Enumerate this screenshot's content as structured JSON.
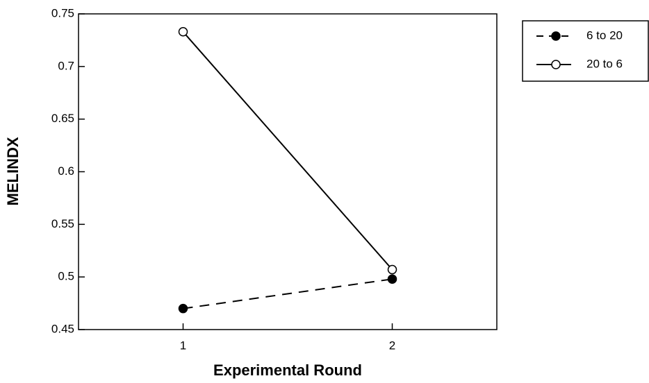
{
  "chart_data": {
    "type": "line",
    "x_label": "Experimental Round",
    "y_label": "MELINDX",
    "x": [
      1,
      2
    ],
    "xlim": [
      0.5,
      2.5
    ],
    "xticks": [
      1,
      2
    ],
    "ylim": [
      0.45,
      0.75
    ],
    "yticks": [
      0.45,
      0.5,
      0.55,
      0.6,
      0.65,
      0.7,
      0.75
    ],
    "legend": "outside-top-right",
    "series": [
      {
        "name": "6 to 20",
        "color": "#000000",
        "line_style": "dashed",
        "marker": "filled",
        "values": [
          0.47,
          0.498
        ]
      },
      {
        "name": "20 to 6",
        "color": "#000000",
        "line_style": "solid",
        "marker": "open",
        "values": [
          0.733,
          0.507
        ]
      }
    ]
  }
}
